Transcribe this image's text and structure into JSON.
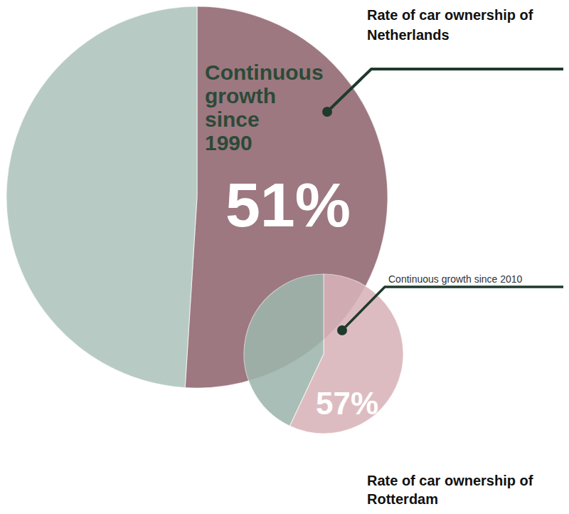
{
  "chart_data": [
    {
      "type": "pie",
      "title": "Rate of car ownership of Netherlands",
      "annotation": "Continuous growth since 1990",
      "values": [
        51,
        49
      ],
      "value_labels": [
        "51%",
        null
      ],
      "colors": [
        "#9d7880",
        "#b7cbc4"
      ]
    },
    {
      "type": "pie",
      "title": "Rate of car ownership of Rotterdam",
      "annotation": "Continuous growth since 2010",
      "values": [
        57,
        43
      ],
      "value_labels": [
        "57%",
        null
      ],
      "colors": [
        "#d9b3b9",
        "#9db6ad"
      ]
    }
  ]
}
